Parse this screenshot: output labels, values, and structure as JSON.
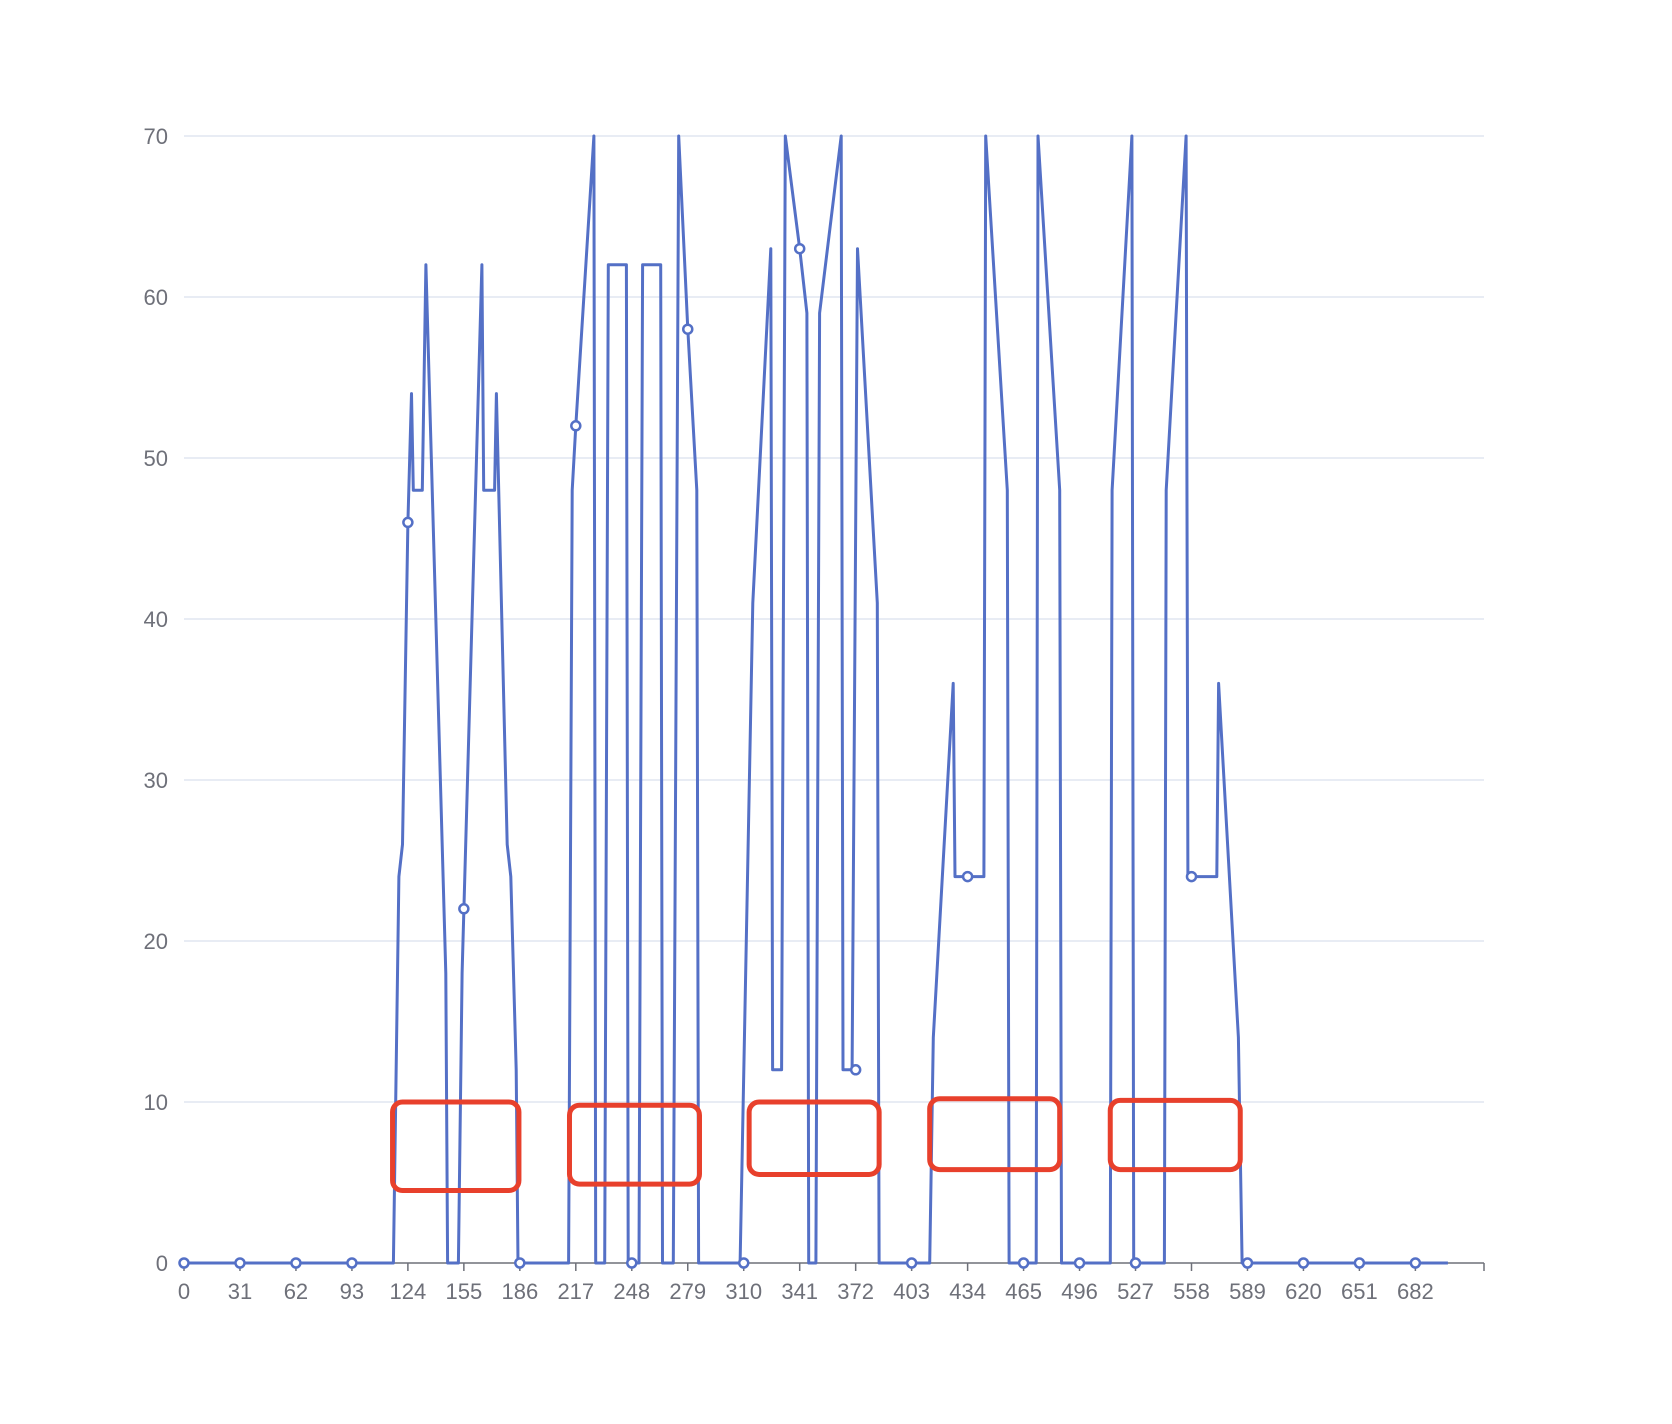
{
  "colors": {
    "line": "#5470c6",
    "grid": "#e0e6f1",
    "axis": "#6e7079",
    "highlight": "#e8402c",
    "background": "#ffffff"
  },
  "chart_data": {
    "type": "line",
    "title": "",
    "xlabel": "",
    "ylabel": "",
    "xlim": [
      0,
      720
    ],
    "ylim": [
      0,
      70
    ],
    "grid": true,
    "legend": "none",
    "x_tick_labels": [
      "0",
      "31",
      "62",
      "93",
      "124",
      "155",
      "186",
      "217",
      "248",
      "279",
      "310",
      "341",
      "372",
      "403",
      "434",
      "465",
      "496",
      "527",
      "558",
      "589",
      "620",
      "651",
      "682"
    ],
    "y_tick_labels": [
      "0",
      "10",
      "20",
      "30",
      "40",
      "50",
      "60",
      "70"
    ],
    "series": [
      {
        "points": [
          [
            0,
            0
          ],
          [
            116,
            0
          ],
          [
            119,
            24
          ],
          [
            121,
            26
          ],
          [
            124,
            46
          ],
          [
            126,
            54
          ],
          [
            127,
            48
          ],
          [
            132,
            48
          ],
          [
            134,
            62
          ],
          [
            145,
            18
          ],
          [
            146,
            0
          ],
          [
            152,
            0
          ],
          [
            154,
            18
          ],
          [
            155,
            22
          ],
          [
            165,
            62
          ],
          [
            166,
            48
          ],
          [
            172,
            48
          ],
          [
            173,
            54
          ],
          [
            179,
            26
          ],
          [
            181,
            24
          ],
          [
            184,
            12
          ],
          [
            185,
            0
          ],
          [
            213,
            0
          ],
          [
            215,
            48
          ],
          [
            217,
            52
          ],
          [
            227,
            70
          ],
          [
            228,
            0
          ],
          [
            233,
            0
          ],
          [
            235,
            62
          ],
          [
            245,
            62
          ],
          [
            246,
            0
          ],
          [
            252,
            0
          ],
          [
            254,
            62
          ],
          [
            264,
            62
          ],
          [
            265,
            0
          ],
          [
            271,
            0
          ],
          [
            274,
            70
          ],
          [
            279,
            58
          ],
          [
            284,
            48
          ],
          [
            285,
            0
          ],
          [
            308,
            0
          ],
          [
            315,
            41
          ],
          [
            325,
            63
          ],
          [
            326,
            12
          ],
          [
            331,
            12
          ],
          [
            333,
            70
          ],
          [
            341,
            63
          ],
          [
            345,
            59
          ],
          [
            346,
            0
          ],
          [
            350,
            0
          ],
          [
            352,
            59
          ],
          [
            364,
            70
          ],
          [
            365,
            12
          ],
          [
            370,
            12
          ],
          [
            373,
            63
          ],
          [
            384,
            41
          ],
          [
            385,
            0
          ],
          [
            413,
            0
          ],
          [
            415,
            14
          ],
          [
            426,
            36
          ],
          [
            427,
            24
          ],
          [
            443,
            24
          ],
          [
            444,
            70
          ],
          [
            456,
            48
          ],
          [
            457,
            0
          ],
          [
            472,
            0
          ],
          [
            473,
            70
          ],
          [
            485,
            48
          ],
          [
            486,
            0
          ],
          [
            513,
            0
          ],
          [
            514,
            48
          ],
          [
            525,
            70
          ],
          [
            526,
            0
          ],
          [
            543,
            0
          ],
          [
            544,
            48
          ],
          [
            555,
            70
          ],
          [
            556,
            24
          ],
          [
            572,
            24
          ],
          [
            573,
            36
          ],
          [
            584,
            14
          ],
          [
            586,
            0
          ],
          [
            700,
            0
          ]
        ],
        "markers": [
          [
            0,
            0
          ],
          [
            31,
            0
          ],
          [
            62,
            0
          ],
          [
            93,
            0
          ],
          [
            124,
            46
          ],
          [
            155,
            22
          ],
          [
            186,
            0
          ],
          [
            217,
            52
          ],
          [
            248,
            0
          ],
          [
            279,
            58
          ],
          [
            310,
            0
          ],
          [
            341,
            63
          ],
          [
            372,
            12
          ],
          [
            403,
            0
          ],
          [
            434,
            24
          ],
          [
            465,
            0
          ],
          [
            496,
            0
          ],
          [
            527,
            0
          ],
          [
            558,
            24
          ],
          [
            589,
            0
          ],
          [
            620,
            0
          ],
          [
            651,
            0
          ],
          [
            682,
            0
          ]
        ]
      }
    ],
    "annotations": [
      {
        "type": "rectangle",
        "x0": 115.5,
        "x1": 185.5,
        "y0": 4.5,
        "y1": 10
      },
      {
        "type": "rectangle",
        "x0": 213.5,
        "x1": 285.5,
        "y0": 4.9,
        "y1": 9.8
      },
      {
        "type": "rectangle",
        "x0": 313,
        "x1": 385,
        "y0": 5.5,
        "y1": 10
      },
      {
        "type": "rectangle",
        "x0": 413,
        "x1": 485,
        "y0": 5.8,
        "y1": 10.2
      },
      {
        "type": "rectangle",
        "x0": 513,
        "x1": 585,
        "y0": 5.8,
        "y1": 10.1
      }
    ]
  }
}
